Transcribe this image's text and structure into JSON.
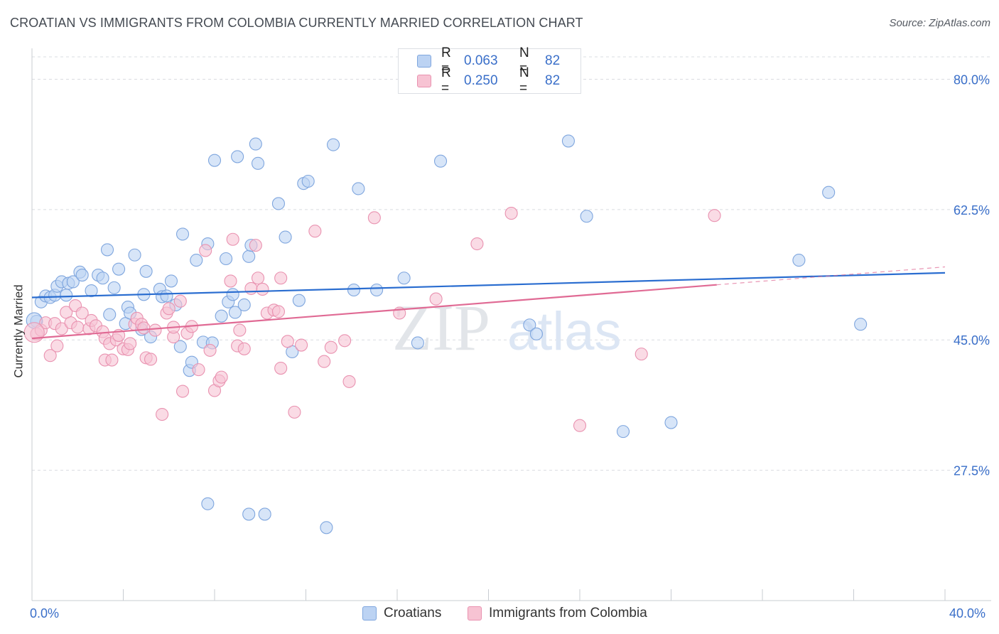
{
  "title": "CROATIAN VS IMMIGRANTS FROM COLOMBIA CURRENTLY MARRIED CORRELATION CHART",
  "source": "Source: ZipAtlas.com",
  "watermark": "ZIPatlas",
  "legend": {
    "rows": [
      {
        "r_label": "R =",
        "r_value": "0.063",
        "n_label": "N =",
        "n_value": "82"
      },
      {
        "r_label": "R =",
        "r_value": "0.250",
        "n_label": "N =",
        "n_value": "82"
      }
    ]
  },
  "bottom_legend": {
    "series1": "Croatians",
    "series2": "Immigrants from Colombia"
  },
  "x_axis": {
    "min_label": "0.0%",
    "max_label": "40.0%"
  },
  "colors": {
    "blue_fill": "#bcd3f3",
    "blue_stroke": "#7fa6de",
    "blue_line": "#2a6dd0",
    "pink_fill": "#f7c3d3",
    "pink_stroke": "#e992b0",
    "pink_line": "#e06a94",
    "tick_label": "#3a6fc9",
    "grid": "#d9dce1"
  },
  "chart_data": {
    "type": "scatter",
    "title": "CROATIAN VS IMMIGRANTS FROM COLOMBIA CURRENTLY MARRIED CORRELATION CHART",
    "xlabel": "",
    "ylabel": "Currently Married",
    "xlim": [
      0,
      40
    ],
    "ylim": [
      10,
      83
    ],
    "yticks": [
      {
        "value": 80.0,
        "label": "80.0%"
      },
      {
        "value": 62.5,
        "label": "62.5%"
      },
      {
        "value": 45.0,
        "label": "45.0%"
      },
      {
        "value": 27.5,
        "label": "27.5%"
      }
    ],
    "series": [
      {
        "name": "Croatians",
        "r": 0.063,
        "n": 82,
        "trend": {
          "x": [
            0,
            40
          ],
          "y": [
            50.7,
            54.0
          ]
        },
        "points": [
          [
            0.2,
            47.5
          ],
          [
            0.4,
            50.1
          ],
          [
            0.6,
            50.9
          ],
          [
            0.8,
            50.7
          ],
          [
            1.0,
            51.0
          ],
          [
            1.1,
            52.2
          ],
          [
            1.3,
            52.8
          ],
          [
            1.5,
            51.0
          ],
          [
            1.6,
            52.6
          ],
          [
            1.8,
            52.8
          ],
          [
            2.1,
            54.1
          ],
          [
            2.2,
            53.7
          ],
          [
            2.6,
            51.6
          ],
          [
            2.9,
            53.7
          ],
          [
            3.1,
            53.3
          ],
          [
            3.3,
            57.1
          ],
          [
            3.4,
            48.4
          ],
          [
            3.6,
            52.0
          ],
          [
            3.8,
            54.5
          ],
          [
            4.1,
            47.2
          ],
          [
            4.2,
            49.4
          ],
          [
            4.3,
            48.6
          ],
          [
            4.5,
            56.4
          ],
          [
            4.8,
            46.4
          ],
          [
            4.9,
            51.1
          ],
          [
            5.0,
            54.2
          ],
          [
            5.2,
            45.4
          ],
          [
            5.6,
            51.8
          ],
          [
            5.7,
            50.8
          ],
          [
            5.9,
            50.9
          ],
          [
            6.1,
            52.9
          ],
          [
            6.3,
            49.7
          ],
          [
            6.5,
            44.1
          ],
          [
            6.6,
            59.2
          ],
          [
            6.9,
            40.9
          ],
          [
            7.0,
            42.0
          ],
          [
            7.2,
            55.7
          ],
          [
            7.5,
            44.7
          ],
          [
            7.7,
            57.9
          ],
          [
            7.7,
            23.0
          ],
          [
            7.9,
            44.6
          ],
          [
            8.0,
            69.1
          ],
          [
            8.3,
            48.2
          ],
          [
            8.5,
            55.9
          ],
          [
            8.6,
            50.1
          ],
          [
            8.8,
            51.1
          ],
          [
            8.9,
            48.7
          ],
          [
            9.0,
            69.6
          ],
          [
            9.3,
            49.7
          ],
          [
            9.5,
            56.2
          ],
          [
            9.5,
            21.6
          ],
          [
            9.6,
            57.7
          ],
          [
            9.8,
            71.3
          ],
          [
            9.9,
            68.7
          ],
          [
            10.2,
            21.6
          ],
          [
            10.8,
            63.3
          ],
          [
            11.1,
            58.8
          ],
          [
            11.4,
            43.4
          ],
          [
            11.7,
            50.3
          ],
          [
            11.9,
            66.0
          ],
          [
            12.1,
            66.3
          ],
          [
            12.9,
            19.8
          ],
          [
            13.2,
            71.2
          ],
          [
            14.1,
            51.7
          ],
          [
            14.3,
            65.3
          ],
          [
            15.1,
            51.7
          ],
          [
            16.3,
            53.3
          ],
          [
            16.9,
            44.6
          ],
          [
            17.9,
            69.0
          ],
          [
            21.8,
            47.0
          ],
          [
            22.1,
            45.8
          ],
          [
            23.5,
            71.7
          ],
          [
            24.3,
            61.6
          ],
          [
            25.9,
            32.7
          ],
          [
            28.0,
            33.9
          ],
          [
            33.6,
            55.7
          ],
          [
            34.9,
            64.8
          ],
          [
            36.3,
            47.1
          ]
        ]
      },
      {
        "name": "Immigrants from Colombia",
        "r": 0.25,
        "n": 82,
        "trend": {
          "x": [
            0,
            30.0
          ],
          "y": [
            45.2,
            52.4
          ]
        },
        "trend_dashed": {
          "x": [
            30.0,
            40
          ],
          "y": [
            52.4,
            54.8
          ]
        },
        "points": [
          [
            0.2,
            45.8
          ],
          [
            0.4,
            46.3
          ],
          [
            0.6,
            47.3
          ],
          [
            0.8,
            42.9
          ],
          [
            1.0,
            47.2
          ],
          [
            1.1,
            44.2
          ],
          [
            1.3,
            46.5
          ],
          [
            1.5,
            48.7
          ],
          [
            1.7,
            47.3
          ],
          [
            1.9,
            49.6
          ],
          [
            2.0,
            46.7
          ],
          [
            2.2,
            48.6
          ],
          [
            2.5,
            46.5
          ],
          [
            2.6,
            47.6
          ],
          [
            2.8,
            46.9
          ],
          [
            3.1,
            46.1
          ],
          [
            3.2,
            45.2
          ],
          [
            3.2,
            42.3
          ],
          [
            3.4,
            44.5
          ],
          [
            3.5,
            42.3
          ],
          [
            3.7,
            45.0
          ],
          [
            3.8,
            45.6
          ],
          [
            4.0,
            43.8
          ],
          [
            4.2,
            43.7
          ],
          [
            4.3,
            44.5
          ],
          [
            4.5,
            47.1
          ],
          [
            4.6,
            47.9
          ],
          [
            4.8,
            47.1
          ],
          [
            4.9,
            46.6
          ],
          [
            5.0,
            42.6
          ],
          [
            5.2,
            42.4
          ],
          [
            5.4,
            46.3
          ],
          [
            5.7,
            35.0
          ],
          [
            5.9,
            48.6
          ],
          [
            6.0,
            49.2
          ],
          [
            6.2,
            45.4
          ],
          [
            6.2,
            46.7
          ],
          [
            6.5,
            50.2
          ],
          [
            6.6,
            38.1
          ],
          [
            6.8,
            45.9
          ],
          [
            7.0,
            46.8
          ],
          [
            7.3,
            41.0
          ],
          [
            7.6,
            57.0
          ],
          [
            7.8,
            43.6
          ],
          [
            8.0,
            38.2
          ],
          [
            8.2,
            39.5
          ],
          [
            8.3,
            40.0
          ],
          [
            8.7,
            52.9
          ],
          [
            8.8,
            58.5
          ],
          [
            9.0,
            44.2
          ],
          [
            9.1,
            46.3
          ],
          [
            9.3,
            43.8
          ],
          [
            9.6,
            51.9
          ],
          [
            9.8,
            57.7
          ],
          [
            9.9,
            53.3
          ],
          [
            10.1,
            51.8
          ],
          [
            10.3,
            48.6
          ],
          [
            10.6,
            49.0
          ],
          [
            10.8,
            48.8
          ],
          [
            10.9,
            53.3
          ],
          [
            10.9,
            41.2
          ],
          [
            11.2,
            44.8
          ],
          [
            11.5,
            35.3
          ],
          [
            11.8,
            44.3
          ],
          [
            12.4,
            59.6
          ],
          [
            12.8,
            42.1
          ],
          [
            13.1,
            44.0
          ],
          [
            13.7,
            44.9
          ],
          [
            13.9,
            39.4
          ],
          [
            15.0,
            61.4
          ],
          [
            16.1,
            48.6
          ],
          [
            17.7,
            50.5
          ],
          [
            19.5,
            57.9
          ],
          [
            21.0,
            62.0
          ],
          [
            24.0,
            33.5
          ],
          [
            26.7,
            43.1
          ],
          [
            29.9,
            61.7
          ]
        ]
      }
    ]
  }
}
